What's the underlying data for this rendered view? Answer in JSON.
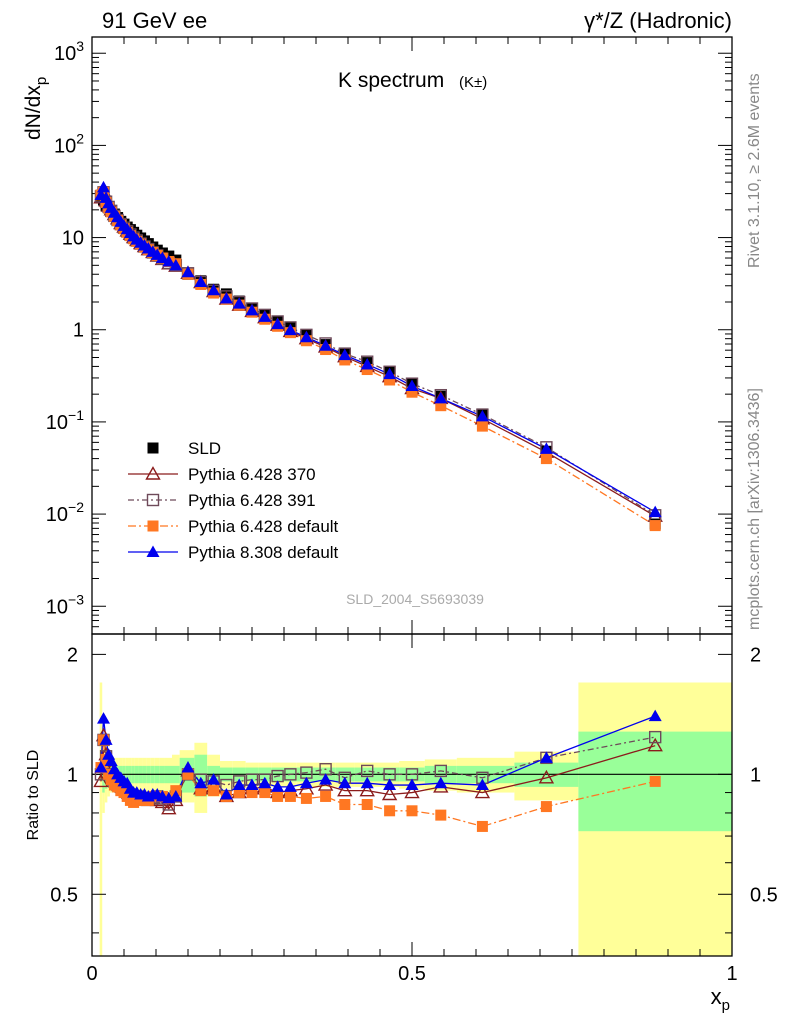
{
  "header": {
    "left": "91 GeV ee",
    "right": "γ*/Z (Hadronic)"
  },
  "side_labels": {
    "rivet": "Rivet 3.1.10, ≥ 2.6M events",
    "mcplots": "mcplots.cern.ch [arXiv:1306.3436]"
  },
  "plot_label": "K spectrum",
  "plot_label_sub": "(K±)",
  "analysis_id": "SLD_2004_S5693039",
  "chart_data": [
    {
      "type": "scatter",
      "panel": "main",
      "ylabel": "dN/dx_p",
      "yscale": "log",
      "ylim": [
        0.0005,
        1500
      ],
      "xlim": [
        0,
        1
      ],
      "ytick_labels": [
        "10^-3",
        "10^-2",
        "10^-1",
        "1",
        "10",
        "10^2",
        "10^3"
      ],
      "x": [
        0.014,
        0.018,
        0.022,
        0.026,
        0.03,
        0.035,
        0.04,
        0.045,
        0.05,
        0.055,
        0.06,
        0.065,
        0.07,
        0.076,
        0.082,
        0.088,
        0.095,
        0.102,
        0.11,
        0.12,
        0.131,
        0.15,
        0.17,
        0.19,
        0.21,
        0.23,
        0.25,
        0.27,
        0.29,
        0.31,
        0.335,
        0.365,
        0.395,
        0.43,
        0.465,
        0.5,
        0.545,
        0.61,
        0.71,
        0.88
      ],
      "series": [
        {
          "name": "SLD",
          "color": "#000000",
          "marker": "square-filled",
          "values": [
            28,
            25.5,
            22,
            21,
            19.5,
            18,
            16.5,
            15,
            14,
            13,
            12.2,
            11.4,
            10.6,
            9.9,
            9.2,
            8.6,
            7.9,
            7.3,
            6.8,
            6.3,
            5.7,
            4.0,
            3.4,
            2.75,
            2.45,
            2.05,
            1.72,
            1.45,
            1.24,
            1.06,
            0.87,
            0.69,
            0.56,
            0.44,
            0.35,
            0.26,
            0.19,
            0.122,
            0.048,
            0.0078
          ]
        },
        {
          "name": "Pythia 6.428 370",
          "color": "#8b1c1c",
          "marker": "triangle-open",
          "values": [
            27,
            32,
            25,
            22,
            20,
            17.8,
            16,
            14.2,
            13,
            11.8,
            10.9,
            10,
            9.3,
            8.6,
            8,
            7.4,
            6.9,
            6.3,
            5.8,
            5.2,
            4.9,
            4.1,
            3.25,
            2.6,
            2.15,
            1.85,
            1.58,
            1.35,
            1.12,
            0.96,
            0.8,
            0.65,
            0.51,
            0.4,
            0.31,
            0.23,
            0.18,
            0.108,
            0.047,
            0.0095
          ]
        },
        {
          "name": "Pythia 6.428 391",
          "color": "#6e4a5a",
          "marker": "square-open",
          "dash": "6,3,2,3",
          "values": [
            28,
            31,
            24.5,
            21.5,
            19.5,
            17.2,
            15.5,
            14,
            12.8,
            11.7,
            10.8,
            10,
            9.3,
            8.6,
            8,
            7.5,
            6.9,
            6.4,
            5.9,
            5.3,
            5.0,
            4.1,
            3.3,
            2.65,
            2.3,
            2.0,
            1.7,
            1.45,
            1.23,
            1.06,
            0.88,
            0.71,
            0.55,
            0.45,
            0.35,
            0.26,
            0.195,
            0.12,
            0.053,
            0.0097
          ]
        },
        {
          "name": "Pythia 6.428 default",
          "color": "#ff7722",
          "marker": "square-filled",
          "dash": "8,3,2,3",
          "values": [
            29,
            31,
            24,
            21,
            19,
            17,
            15.3,
            13.7,
            12.5,
            11.4,
            10.5,
            9.7,
            9.1,
            8.5,
            7.9,
            7.4,
            6.9,
            6.4,
            6.0,
            5.5,
            5.2,
            4.0,
            3.1,
            2.5,
            2.15,
            1.85,
            1.55,
            1.3,
            1.09,
            0.93,
            0.76,
            0.61,
            0.47,
            0.37,
            0.285,
            0.21,
            0.15,
            0.09,
            0.04,
            0.0075
          ]
        },
        {
          "name": "Pythia 8.308 default",
          "color": "#0000ee",
          "marker": "triangle-filled",
          "values": [
            29,
            35,
            27,
            23.5,
            21,
            18.6,
            16.6,
            14.8,
            13.4,
            12.3,
            11.2,
            10.3,
            9.5,
            8.8,
            8.2,
            7.6,
            7.0,
            6.5,
            6.0,
            5.5,
            5.0,
            4.2,
            3.3,
            2.68,
            2.18,
            1.92,
            1.62,
            1.38,
            1.15,
            0.99,
            0.83,
            0.67,
            0.53,
            0.42,
            0.33,
            0.245,
            0.18,
            0.115,
            0.051,
            0.0105
          ]
        }
      ],
      "legend_position": "lower-left"
    },
    {
      "type": "scatter",
      "panel": "ratio",
      "ylabel": "Ratio to SLD",
      "xlabel": "x_p",
      "ylim": [
        0.35,
        2.25
      ],
      "xlim": [
        0,
        1
      ],
      "xticks": [
        0,
        0.5,
        1
      ],
      "ytick_labels": [
        "0.5",
        "1",
        "2"
      ],
      "x": [
        0.014,
        0.018,
        0.022,
        0.026,
        0.03,
        0.035,
        0.04,
        0.045,
        0.05,
        0.055,
        0.06,
        0.065,
        0.07,
        0.076,
        0.082,
        0.088,
        0.095,
        0.102,
        0.11,
        0.12,
        0.131,
        0.15,
        0.17,
        0.19,
        0.21,
        0.23,
        0.25,
        0.27,
        0.29,
        0.31,
        0.335,
        0.365,
        0.395,
        0.43,
        0.465,
        0.5,
        0.545,
        0.61,
        0.71,
        0.88
      ],
      "band_edges": [
        0.012,
        0.016,
        0.02,
        0.024,
        0.028,
        0.032,
        0.037,
        0.042,
        0.047,
        0.052,
        0.057,
        0.062,
        0.067,
        0.072,
        0.079,
        0.085,
        0.091,
        0.098,
        0.106,
        0.114,
        0.125,
        0.137,
        0.16,
        0.18,
        0.2,
        0.22,
        0.24,
        0.26,
        0.28,
        0.3,
        0.32,
        0.35,
        0.38,
        0.41,
        0.45,
        0.48,
        0.52,
        0.57,
        0.66,
        0.76,
        1.0
      ],
      "band_green": [
        0.03,
        0.1,
        0.08,
        0.06,
        0.05,
        0.05,
        0.05,
        0.05,
        0.05,
        0.05,
        0.05,
        0.05,
        0.05,
        0.05,
        0.05,
        0.05,
        0.05,
        0.05,
        0.05,
        0.05,
        0.05,
        0.1,
        0.12,
        0.05,
        0.04,
        0.04,
        0.04,
        0.04,
        0.04,
        0.04,
        0.04,
        0.04,
        0.04,
        0.04,
        0.04,
        0.04,
        0.05,
        0.05,
        0.07,
        0.28
      ],
      "band_yellow": [
        0.7,
        0.2,
        0.15,
        0.12,
        0.1,
        0.1,
        0.1,
        0.1,
        0.1,
        0.1,
        0.1,
        0.1,
        0.1,
        0.1,
        0.1,
        0.1,
        0.1,
        0.1,
        0.1,
        0.1,
        0.12,
        0.15,
        0.2,
        0.12,
        0.08,
        0.08,
        0.07,
        0.07,
        0.07,
        0.07,
        0.07,
        0.07,
        0.07,
        0.07,
        0.07,
        0.08,
        0.09,
        0.1,
        0.14,
        0.7
      ],
      "series": [
        {
          "name": "Pythia 6.428 370",
          "color": "#8b1c1c",
          "marker": "triangle-open",
          "values": [
            0.96,
            1.25,
            1.12,
            1.05,
            1.02,
            0.99,
            0.97,
            0.95,
            0.93,
            0.91,
            0.89,
            0.88,
            0.88,
            0.87,
            0.87,
            0.86,
            0.87,
            0.86,
            0.85,
            0.82,
            0.86,
            1.02,
            0.92,
            0.93,
            0.88,
            0.9,
            0.92,
            0.93,
            0.9,
            0.91,
            0.92,
            0.94,
            0.91,
            0.91,
            0.89,
            0.9,
            0.93,
            0.9,
            0.98,
            1.18
          ]
        },
        {
          "name": "Pythia 6.428 391",
          "color": "#6e4a5a",
          "marker": "square-open",
          "dash": "6,3,2,3",
          "values": [
            1.0,
            1.22,
            1.11,
            1.03,
            1.0,
            0.96,
            0.94,
            0.93,
            0.92,
            0.9,
            0.89,
            0.88,
            0.88,
            0.87,
            0.87,
            0.87,
            0.87,
            0.88,
            0.87,
            0.84,
            0.88,
            1.0,
            0.97,
            0.96,
            0.94,
            0.96,
            0.97,
            0.97,
            0.99,
            1.0,
            1.01,
            1.03,
            0.98,
            1.02,
            1.0,
            1.0,
            1.02,
            0.98,
            1.1,
            1.24
          ]
        },
        {
          "name": "Pythia 6.428 default",
          "color": "#ff7722",
          "marker": "square-filled",
          "dash": "8,3,2,3",
          "values": [
            1.04,
            1.22,
            1.09,
            1.0,
            0.97,
            0.94,
            0.93,
            0.91,
            0.9,
            0.88,
            0.86,
            0.85,
            0.86,
            0.86,
            0.86,
            0.86,
            0.88,
            0.88,
            0.88,
            0.87,
            0.91,
            1.0,
            0.91,
            0.91,
            0.88,
            0.9,
            0.9,
            0.9,
            0.88,
            0.88,
            0.87,
            0.88,
            0.84,
            0.84,
            0.81,
            0.81,
            0.79,
            0.74,
            0.83,
            0.96
          ]
        },
        {
          "name": "Pythia 8.308 default",
          "color": "#0000ee",
          "marker": "triangle-filled",
          "values": [
            1.04,
            1.38,
            1.22,
            1.12,
            1.08,
            1.03,
            1.0,
            0.98,
            0.96,
            0.95,
            0.92,
            0.9,
            0.9,
            0.89,
            0.89,
            0.88,
            0.89,
            0.89,
            0.88,
            0.87,
            0.88,
            1.04,
            0.95,
            0.97,
            0.89,
            0.94,
            0.94,
            0.95,
            0.93,
            0.93,
            0.95,
            0.97,
            0.95,
            0.95,
            0.94,
            0.94,
            0.95,
            0.94,
            1.1,
            1.4
          ]
        }
      ]
    }
  ],
  "colors": {
    "band_green": "#99ff99",
    "band_yellow": "#ffff99"
  }
}
